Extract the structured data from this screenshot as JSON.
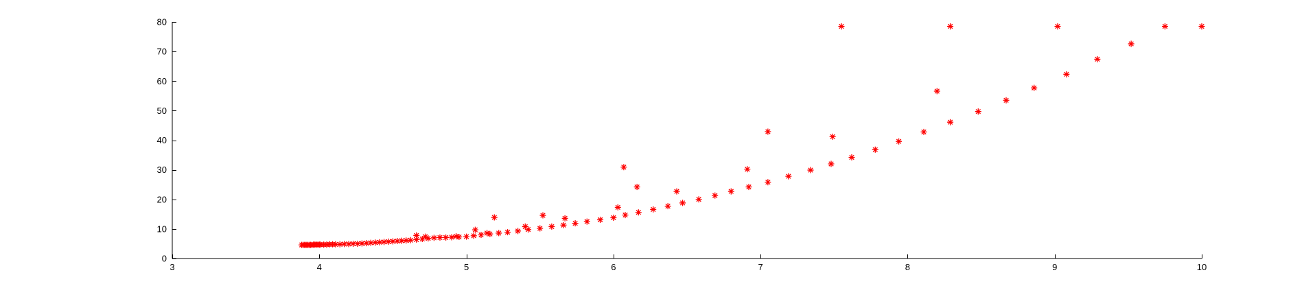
{
  "chart_data": {
    "type": "scatter",
    "title": "",
    "xlabel": "",
    "ylabel": "",
    "xlim": [
      3,
      10
    ],
    "ylim": [
      0,
      80
    ],
    "grid": false,
    "legend": "none",
    "marker": "asterisk",
    "x_ticks": [
      3,
      4,
      5,
      6,
      7,
      8,
      9,
      10
    ],
    "y_ticks": [
      0,
      10,
      20,
      30,
      40,
      50,
      60,
      70,
      80
    ],
    "x_tick_labels": [
      "3",
      "4",
      "5",
      "6",
      "7",
      "8",
      "9",
      "10"
    ],
    "y_tick_labels": [
      "0",
      "10",
      "20",
      "30",
      "40",
      "50",
      "60",
      "70",
      "80"
    ],
    "colors": {
      "marker": "#ff0000",
      "axes": "#000000",
      "background": "#ffffff"
    },
    "series": [
      {
        "points": [
          [
            3.88,
            4.6
          ],
          [
            3.89,
            4.6
          ],
          [
            3.9,
            4.6
          ],
          [
            3.91,
            4.6
          ],
          [
            3.92,
            4.6
          ],
          [
            3.93,
            4.6
          ],
          [
            3.94,
            4.6
          ],
          [
            3.95,
            4.6
          ],
          [
            3.96,
            4.7
          ],
          [
            3.97,
            4.7
          ],
          [
            3.98,
            4.7
          ],
          [
            3.99,
            4.7
          ],
          [
            4.0,
            4.7
          ],
          [
            4.01,
            4.7
          ],
          [
            4.03,
            4.7
          ],
          [
            4.05,
            4.7
          ],
          [
            4.07,
            4.8
          ],
          [
            4.09,
            4.8
          ],
          [
            4.11,
            4.8
          ],
          [
            4.14,
            4.8
          ],
          [
            4.17,
            4.9
          ],
          [
            4.2,
            4.9
          ],
          [
            4.23,
            5.0
          ],
          [
            4.26,
            5.0
          ],
          [
            4.29,
            5.1
          ],
          [
            4.32,
            5.2
          ],
          [
            4.35,
            5.3
          ],
          [
            4.38,
            5.4
          ],
          [
            4.41,
            5.5
          ],
          [
            4.44,
            5.6
          ],
          [
            4.47,
            5.7
          ],
          [
            4.5,
            5.8
          ],
          [
            4.53,
            5.9
          ],
          [
            4.56,
            6.0
          ],
          [
            4.59,
            6.1
          ],
          [
            4.62,
            6.2
          ],
          [
            4.66,
            6.4
          ],
          [
            4.7,
            6.6
          ],
          [
            4.74,
            6.8
          ],
          [
            4.78,
            7.0
          ],
          [
            4.82,
            7.1
          ],
          [
            4.86,
            7.1
          ],
          [
            4.9,
            7.2
          ],
          [
            4.95,
            7.3
          ],
          [
            5.0,
            7.4
          ],
          [
            5.05,
            7.7
          ],
          [
            5.1,
            8.0
          ],
          [
            5.16,
            8.3
          ],
          [
            5.22,
            8.6
          ],
          [
            5.28,
            8.9
          ],
          [
            5.35,
            9.3
          ],
          [
            5.42,
            9.8
          ],
          [
            5.5,
            10.2
          ],
          [
            5.58,
            10.8
          ],
          [
            5.66,
            11.3
          ],
          [
            5.74,
            11.9
          ],
          [
            5.82,
            12.5
          ],
          [
            5.91,
            13.1
          ],
          [
            6.0,
            13.8
          ],
          [
            6.08,
            14.7
          ],
          [
            6.17,
            15.6
          ],
          [
            6.27,
            16.6
          ],
          [
            6.37,
            17.7
          ],
          [
            6.47,
            18.8
          ],
          [
            6.58,
            20.0
          ],
          [
            6.69,
            21.3
          ],
          [
            6.8,
            22.7
          ],
          [
            6.92,
            24.2
          ],
          [
            7.05,
            25.8
          ],
          [
            7.19,
            27.8
          ],
          [
            7.34,
            29.9
          ],
          [
            7.48,
            32.0
          ],
          [
            7.62,
            34.2
          ],
          [
            7.78,
            36.8
          ],
          [
            7.94,
            39.6
          ],
          [
            8.11,
            42.8
          ],
          [
            8.29,
            46.1
          ],
          [
            8.48,
            49.7
          ],
          [
            8.67,
            53.5
          ],
          [
            8.86,
            57.7
          ],
          [
            9.08,
            62.3
          ],
          [
            9.29,
            67.4
          ],
          [
            9.52,
            72.6
          ],
          [
            9.75,
            78.5
          ],
          [
            10.0,
            78.5
          ],
          [
            4.66,
            7.8
          ],
          [
            4.72,
            7.4
          ],
          [
            4.93,
            7.5
          ],
          [
            5.06,
            9.7
          ],
          [
            5.14,
            8.6
          ],
          [
            5.19,
            13.9
          ],
          [
            5.4,
            10.8
          ],
          [
            5.52,
            14.6
          ],
          [
            5.67,
            13.6
          ],
          [
            6.03,
            17.3
          ],
          [
            6.07,
            30.9
          ],
          [
            6.16,
            24.2
          ],
          [
            6.43,
            22.7
          ],
          [
            6.91,
            30.2
          ],
          [
            7.05,
            42.9
          ],
          [
            7.49,
            41.2
          ],
          [
            7.55,
            78.5
          ],
          [
            8.2,
            56.6
          ],
          [
            8.29,
            78.5
          ],
          [
            9.02,
            78.5
          ]
        ]
      }
    ]
  }
}
